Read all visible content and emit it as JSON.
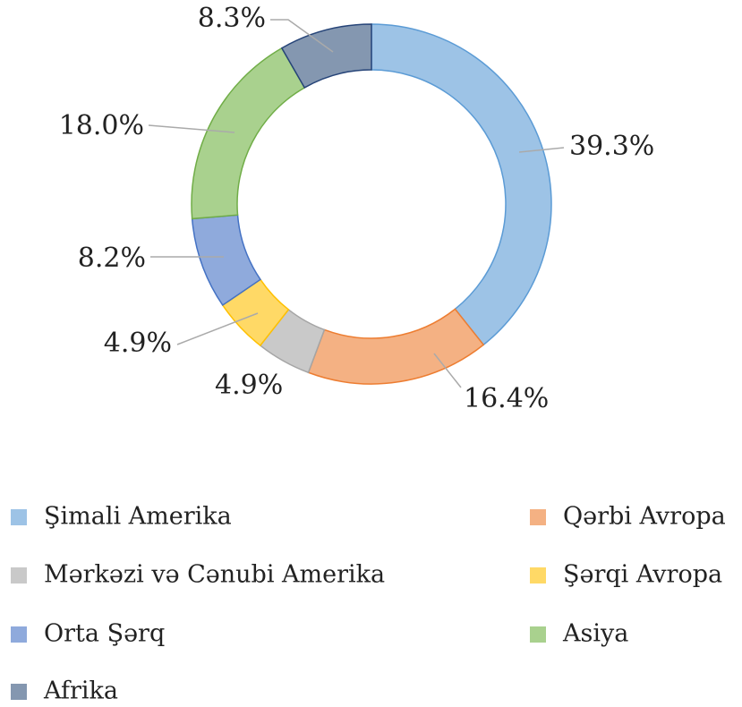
{
  "chart_data": {
    "type": "pie",
    "categories": [
      "Şimali Amerika",
      "Qərbi Avropa",
      "Mərkəzi və Cənubi Amerika",
      "Şərqi Avropa",
      "Orta Şərq",
      "Asiya",
      "Afrika"
    ],
    "values": [
      39.3,
      16.4,
      4.9,
      4.9,
      8.2,
      18.0,
      8.3
    ],
    "value_labels": [
      "39.3%",
      "16.4%",
      "4.9%",
      "4.9%",
      "8.2%",
      "18.0%",
      "8.3%"
    ],
    "colors": [
      "#9dc3e6",
      "#f4b183",
      "#c9c9c9",
      "#ffd966",
      "#8faadc",
      "#a9d18e",
      "#8497b0"
    ],
    "legend": "bottom"
  }
}
